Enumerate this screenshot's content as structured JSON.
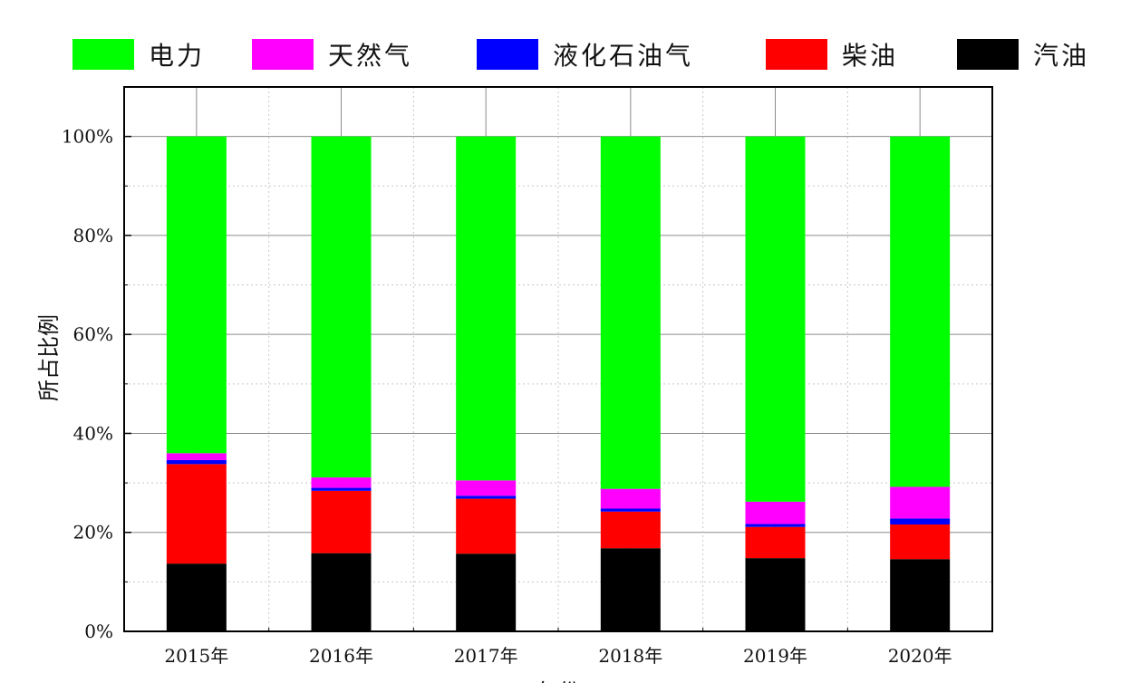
{
  "chart_data": {
    "type": "bar",
    "stacked": true,
    "percent": true,
    "categories": [
      "2015年",
      "2016年",
      "2017年",
      "2018年",
      "2019年",
      "2020年"
    ],
    "series": [
      {
        "name": "汽油",
        "color": "#000000",
        "values": [
          13.7,
          15.8,
          15.7,
          16.8,
          14.8,
          14.6
        ]
      },
      {
        "name": "柴油",
        "color": "#ff0000",
        "values": [
          20.1,
          12.6,
          11.1,
          7.4,
          6.3,
          7.0
        ]
      },
      {
        "name": "液化石油气",
        "color": "#0000ff",
        "values": [
          0.8,
          0.6,
          0.6,
          0.6,
          0.6,
          1.2
        ]
      },
      {
        "name": "天然气",
        "color": "#ff00ff",
        "values": [
          1.4,
          2.1,
          3.1,
          4.0,
          4.5,
          6.4
        ]
      },
      {
        "name": "电力",
        "color": "#00ff00",
        "values": [
          64.0,
          68.9,
          69.5,
          71.2,
          73.8,
          70.8
        ]
      }
    ],
    "legend_order": [
      "电力",
      "天然气",
      "液化石油气",
      "柴油",
      "汽油"
    ],
    "ylabel": "所占比例",
    "xlabel": "年份",
    "ylim": [
      0,
      110
    ],
    "yticks": [
      "0%",
      "20%",
      "40%",
      "60%",
      "80%",
      "100%"
    ],
    "grid": true,
    "legend": "top"
  }
}
